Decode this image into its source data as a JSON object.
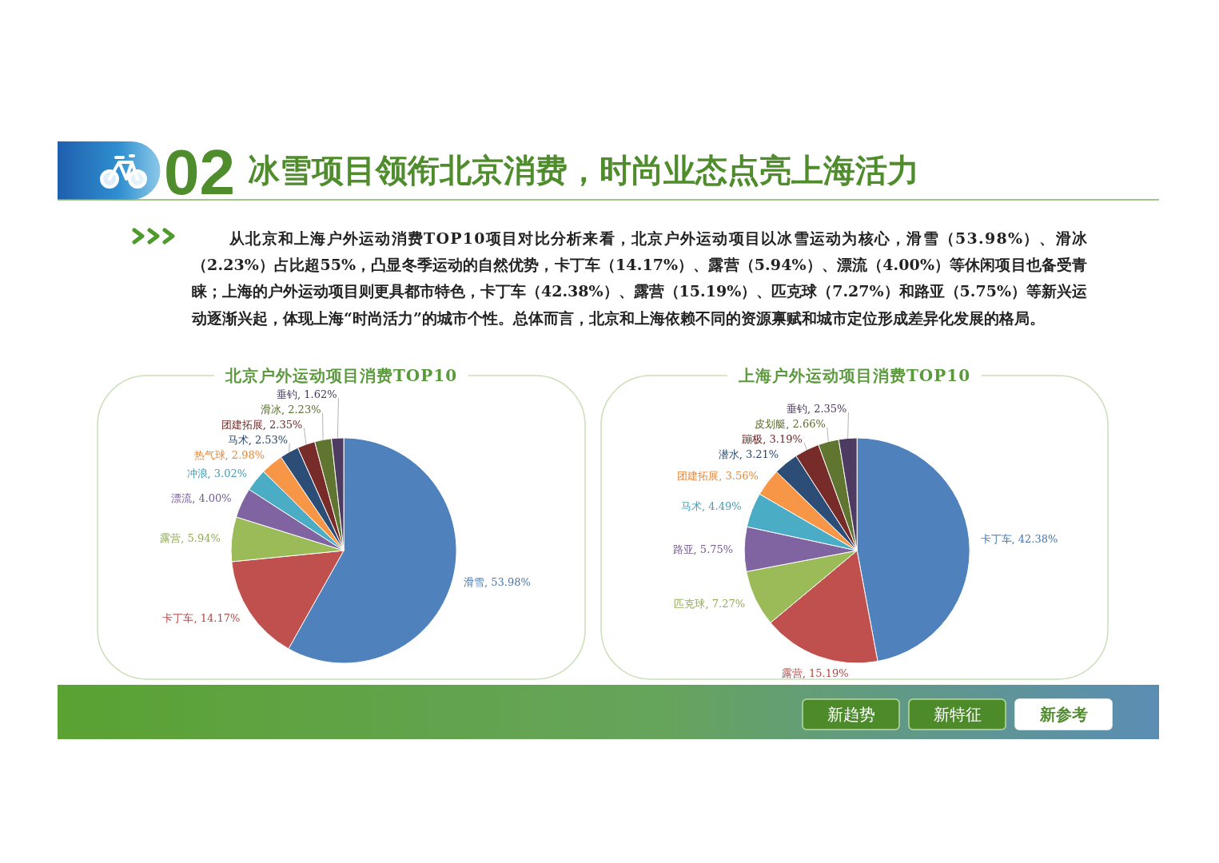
{
  "chart_data": [
    {
      "type": "other",
      "title": "冰雪项目领衔北京消费，时尚业态点亮上海活力",
      "annotations": [
        "02",
        "从北京和上海户外运动消费TOP10项目对比分析来看，北京户外运动项目以冰雪运动为核心，滑雪（53.98%）、滑冰（2.23%）占比超55%，凸显冬季运动的自然优势，卡丁车（14.17%）、露营（5.94%）、漂流（4.00%）等休闲项目也备受青睐；上海的户外运动项目则更具都市特色，卡丁车（42.38%）、露营（15.19%）、匹克球（7.27%）和路亚（5.75%）等新兴运动逐渐兴起，体现上海“时尚活力”的城市个性。总体而言，北京和上海依赖不同的资源禀赋和城市定位形成差异化发展的格局。"
      ]
    },
    {
      "type": "pie",
      "title": "北京户外运动项目消费TOP10",
      "categories": [
        "滑雪",
        "卡丁车",
        "露营",
        "漂流",
        "冲浪",
        "热气球",
        "马术",
        "团建拓展",
        "滑冰",
        "垂钓"
      ],
      "values": [
        53.98,
        14.17,
        5.94,
        4.0,
        3.02,
        2.98,
        2.53,
        2.35,
        2.23,
        1.62
      ],
      "colors": [
        "#4f81bd",
        "#c0504d",
        "#9bbb59",
        "#8064a2",
        "#4bacc6",
        "#f79646",
        "#2c4d75",
        "#772c2a",
        "#5f7530",
        "#4d3b62"
      ],
      "value_labels": [
        "53.98%",
        "14.17%",
        "5.94%",
        "4.00%",
        "3.02%",
        "2.98%",
        "2.53%",
        "2.35%",
        "2.23%",
        "1.62%"
      ]
    },
    {
      "type": "pie",
      "title": "上海户外运动项目消费TOP10",
      "categories": [
        "卡丁车",
        "露营",
        "匹克球",
        "路亚",
        "马术",
        "团建拓展",
        "潜水",
        "蹦极",
        "皮划艇",
        "垂钓"
      ],
      "values": [
        42.38,
        15.19,
        7.27,
        5.75,
        4.49,
        3.56,
        3.21,
        3.19,
        2.66,
        2.35
      ],
      "colors": [
        "#4f81bd",
        "#c0504d",
        "#9bbb59",
        "#8064a2",
        "#4bacc6",
        "#f79646",
        "#2c4d75",
        "#772c2a",
        "#5f7530",
        "#4d3b62"
      ],
      "value_labels": [
        "42.38%",
        "15.19%",
        "7.27%",
        "5.75%",
        "4.49%",
        "3.56%",
        "3.21%",
        "3.19%",
        "2.66%",
        "2.35%"
      ]
    },
    {
      "type": "other",
      "annotations": [
        "新趋势",
        "新特征",
        "新参考"
      ]
    }
  ]
}
